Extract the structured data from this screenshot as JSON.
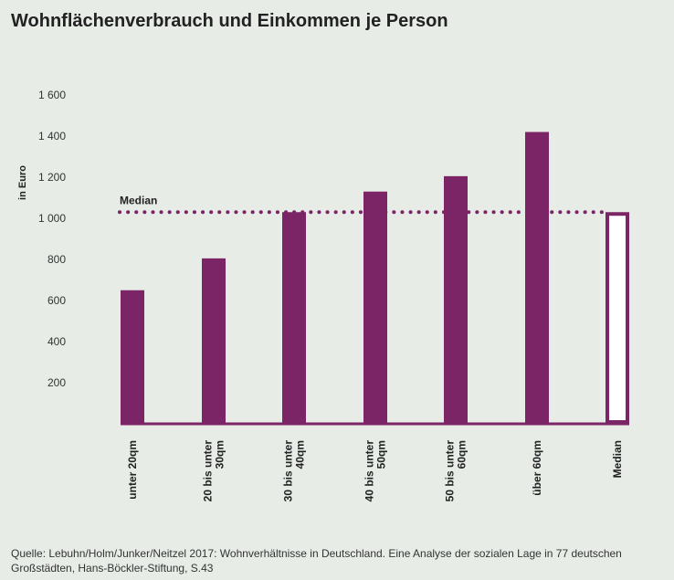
{
  "title": "Wohnflächenverbrauch und Einkommen je Person",
  "source": "Quelle: Lebuhn/Holm/Junker/Neitzel  2017: Wohnverhältnisse in Deutschland. Eine Analyse der sozialen Lage in 77 deutschen Großstädten, Hans-Böckler-Stiftung, S.43",
  "colors": {
    "bar": "#7b2566",
    "background": "#e7ece7",
    "axis_text": "#333333"
  },
  "chart_data": {
    "type": "bar",
    "ylabel": "in Euro",
    "xlabel": "",
    "ylim": [
      0,
      1600
    ],
    "yticks": [
      200,
      400,
      600,
      800,
      1000,
      1200,
      1400,
      1600
    ],
    "ytick_labels": [
      "200",
      "400",
      "600",
      "800",
      "1 000",
      "1 200",
      "1 400",
      "1 600"
    ],
    "categories": [
      "unter 20qm",
      "20 bis unter 30qm",
      "30 bis unter 40qm",
      "40 bis unter 50qm",
      "50 bis unter 60qm",
      "über 60qm",
      "Median"
    ],
    "category_lines": [
      [
        "unter 20qm"
      ],
      [
        "20 bis unter",
        "30qm"
      ],
      [
        "30 bis unter",
        "40qm"
      ],
      [
        "40 bis unter",
        "50qm"
      ],
      [
        "50 bis unter",
        "60qm"
      ],
      [
        "über 60qm"
      ],
      [
        "Median"
      ]
    ],
    "values": [
      650,
      805,
      1030,
      1130,
      1205,
      1420,
      1030
    ],
    "median": {
      "value": 1030,
      "label": "Median"
    },
    "grid": false,
    "legend": "none"
  }
}
